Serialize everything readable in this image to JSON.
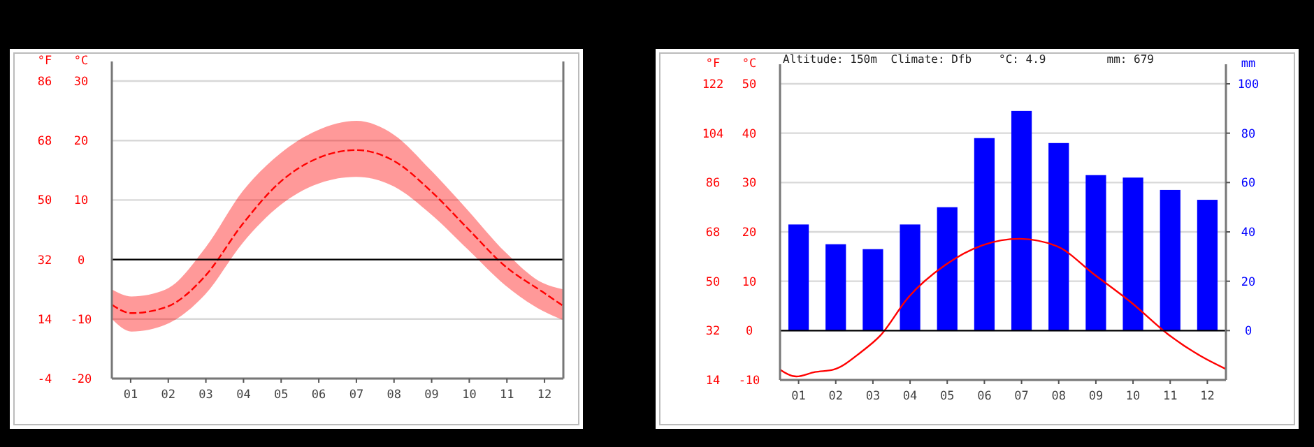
{
  "chart_data": [
    {
      "type": "line",
      "ylabel": "°C",
      "y3label": "°F",
      "xlim": [
        0.5,
        12.5
      ],
      "xticks": [
        {
          "value": 1,
          "label": "01"
        },
        {
          "value": 2,
          "label": "02"
        },
        {
          "value": 3,
          "label": "03"
        },
        {
          "value": 4,
          "label": "04"
        },
        {
          "value": 5,
          "label": "05"
        },
        {
          "value": 6,
          "label": "06"
        },
        {
          "value": 7,
          "label": "07"
        },
        {
          "value": 8,
          "label": "08"
        },
        {
          "value": 9,
          "label": "09"
        },
        {
          "value": 10,
          "label": "10"
        },
        {
          "value": 11,
          "label": "11"
        },
        {
          "value": 12,
          "label": "12"
        }
      ],
      "ylim": [
        -20,
        30
      ],
      "yticks": [
        -20,
        -10,
        0,
        10,
        20,
        30
      ],
      "y3lim": [
        -4,
        86
      ],
      "y3ticks": [
        -4,
        14,
        32,
        50,
        68,
        86
      ],
      "grid": "y",
      "line_style": "dashed",
      "ref_lines": [
        {
          "axis": "y",
          "value": 0,
          "color": "#000000"
        }
      ],
      "series": [
        {
          "color": "#ff0000",
          "x": [
            0.5,
            1.02,
            1.94,
            2.99,
            3.98,
            4.97,
            5.96,
            7,
            7.99,
            8.98,
            9.96,
            10.95,
            11.94,
            12.5
          ],
          "values": [
            -7.6,
            -9,
            -8,
            -2.7,
            6,
            13,
            17,
            18.4,
            16.6,
            11.5,
            5.2,
            -1.1,
            -5.4,
            -7.8
          ],
          "upper": [
            -5,
            -6.2,
            -5,
            2,
            11.5,
            17.8,
            21.7,
            23.3,
            21,
            15,
            8.3,
            1.3,
            -3.9,
            -5
          ],
          "lower": [
            -10,
            -12.1,
            -10.9,
            -5.8,
            2.8,
            9.1,
            12.7,
            13.9,
            12.3,
            7.6,
            1.7,
            -4.3,
            -8.6,
            -10.2
          ]
        }
      ]
    },
    {
      "type": "bar",
      "ylabel": "°C",
      "y3label": "°F",
      "y2label": "mm",
      "xlim": [
        0.5,
        12.5
      ],
      "xticks": [
        {
          "value": 1,
          "label": "01"
        },
        {
          "value": 2,
          "label": "02"
        },
        {
          "value": 3,
          "label": "03"
        },
        {
          "value": 4,
          "label": "04"
        },
        {
          "value": 5,
          "label": "05"
        },
        {
          "value": 6,
          "label": "06"
        },
        {
          "value": 7,
          "label": "07"
        },
        {
          "value": 8,
          "label": "08"
        },
        {
          "value": 9,
          "label": "09"
        },
        {
          "value": 10,
          "label": "10"
        },
        {
          "value": 11,
          "label": "11"
        },
        {
          "value": 12,
          "label": "12"
        }
      ],
      "ylim": [
        -10,
        50
      ],
      "yticks": [
        -10,
        0,
        10,
        20,
        30,
        40,
        50
      ],
      "y3lim": [
        14,
        122
      ],
      "y3ticks": [
        14,
        32,
        50,
        68,
        86,
        104,
        122
      ],
      "y2lim": [
        -20,
        100
      ],
      "y2ticks": [
        0,
        20,
        40,
        60,
        80,
        100
      ],
      "grid": "y",
      "annotations": [
        "Altitude: 150m",
        "Climate: Dfb",
        "°C: 4.9",
        "mm: 679"
      ],
      "ref_lines": [
        {
          "axis": "y",
          "value": 0,
          "color": "#000000"
        }
      ],
      "series": [
        {
          "axis": "y2",
          "color": "#0000ff",
          "x": [
            1,
            2,
            3,
            4,
            5,
            6,
            7,
            8,
            9,
            10,
            11,
            12
          ],
          "values": [
            43,
            35,
            33,
            43,
            50,
            78,
            89,
            76,
            63,
            62,
            57,
            53
          ]
        },
        {
          "type": "line",
          "color": "#ff0000",
          "line_style": "solid",
          "x": [
            0.5,
            0.94,
            1.44,
            1.94,
            2.69,
            3.2,
            3.95,
            4.95,
            5.95,
            6.95,
            7.95,
            8.95,
            9.95,
            10.95,
            11.83,
            12.5
          ],
          "values": [
            -7.9,
            -9.3,
            -8.4,
            -7.9,
            -4.3,
            -1,
            6.7,
            13.3,
            17.3,
            18.6,
            17.1,
            11.4,
            5.7,
            -0.8,
            -5.2,
            -7.8
          ]
        }
      ]
    }
  ]
}
